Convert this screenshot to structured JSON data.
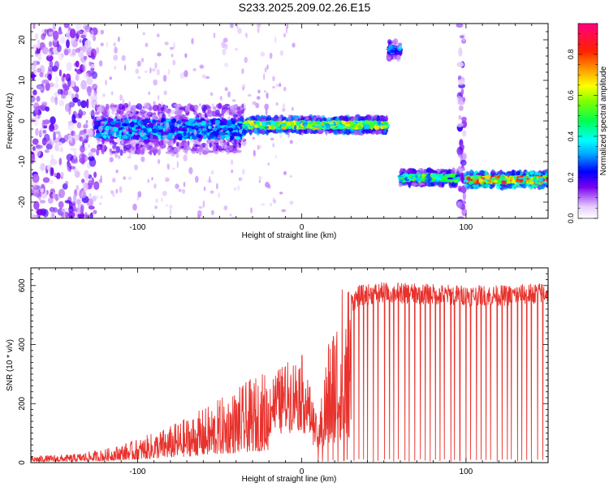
{
  "figure": {
    "title": "S233.2025.209.02.26.E15"
  },
  "chart_data": [
    {
      "type": "heatmap",
      "title": "",
      "xlabel": "Height of straight line (km)",
      "ylabel": "Frequency (Hz)",
      "xlim": [
        -165,
        150
      ],
      "ylim": [
        -24,
        24
      ],
      "xticks": [
        "-100",
        "0",
        "100"
      ],
      "yticks": [
        "20",
        "10",
        "0",
        "-10",
        "-20"
      ],
      "colorbar": {
        "label": "Normalized spectral amplitude",
        "range": [
          0,
          0.95
        ],
        "ticks": [
          "0.0",
          "0.2",
          "0.4",
          "0.6",
          "0.8"
        ],
        "colormap": "rainbow"
      },
      "features": [
        {
          "label": "broad scatter",
          "x_range": [
            -165,
            -125
          ],
          "y_range": [
            -24,
            24
          ],
          "amplitude": 0.1
        },
        {
          "label": "noisy trace",
          "x_range": [
            -125,
            -35
          ],
          "y_center": -2,
          "amplitude": 0.3
        },
        {
          "label": "main trace",
          "x_range": [
            -35,
            52
          ],
          "y_center": -1,
          "amplitude": 0.55
        },
        {
          "label": "short burst",
          "x_range": [
            53,
            60
          ],
          "y_center": 17.5,
          "amplitude": 0.3
        },
        {
          "label": "shifted trace 1",
          "x_range": [
            60,
            96
          ],
          "y_center": -14,
          "amplitude": 0.45
        },
        {
          "label": "vertical streak",
          "x_range": [
            96,
            99
          ],
          "y_range": [
            -24,
            24
          ],
          "amplitude": 0.1
        },
        {
          "label": "shifted trace 2",
          "x_range": [
            100,
            150
          ],
          "y_center": -14.5,
          "amplitude": 0.7
        }
      ]
    },
    {
      "type": "line",
      "title": "",
      "xlabel": "Height of straight line (km)",
      "ylabel": "SNR (10 * v/v)",
      "xlim": [
        -165,
        150
      ],
      "ylim": [
        0,
        660
      ],
      "xticks": [
        "-100",
        "0",
        "100"
      ],
      "yticks": [
        "0",
        "200",
        "400",
        "600"
      ],
      "color": "#e8322d",
      "series": [
        {
          "values_envelope": [
            {
              "x": -165,
              "y": 20
            },
            {
              "x": -140,
              "y": 25
            },
            {
              "x": -120,
              "y": 40
            },
            {
              "x": -100,
              "y": 70
            },
            {
              "x": -80,
              "y": 110
            },
            {
              "x": -60,
              "y": 160
            },
            {
              "x": -40,
              "y": 220
            },
            {
              "x": -20,
              "y": 280
            },
            {
              "x": -8,
              "y": 330
            },
            {
              "x": 0,
              "y": 350
            },
            {
              "x": 5,
              "y": 250
            },
            {
              "x": 10,
              "y": 120
            },
            {
              "x": 15,
              "y": 350
            },
            {
              "x": 20,
              "y": 450
            },
            {
              "x": 25,
              "y": 540
            },
            {
              "x": 35,
              "y": 590
            },
            {
              "x": 50,
              "y": 600
            },
            {
              "x": 75,
              "y": 595
            },
            {
              "x": 100,
              "y": 590
            },
            {
              "x": 125,
              "y": 590
            },
            {
              "x": 150,
              "y": 600
            }
          ],
          "dropout_count": 45,
          "dropout_x_range": [
            8,
            148
          ]
        }
      ]
    }
  ]
}
